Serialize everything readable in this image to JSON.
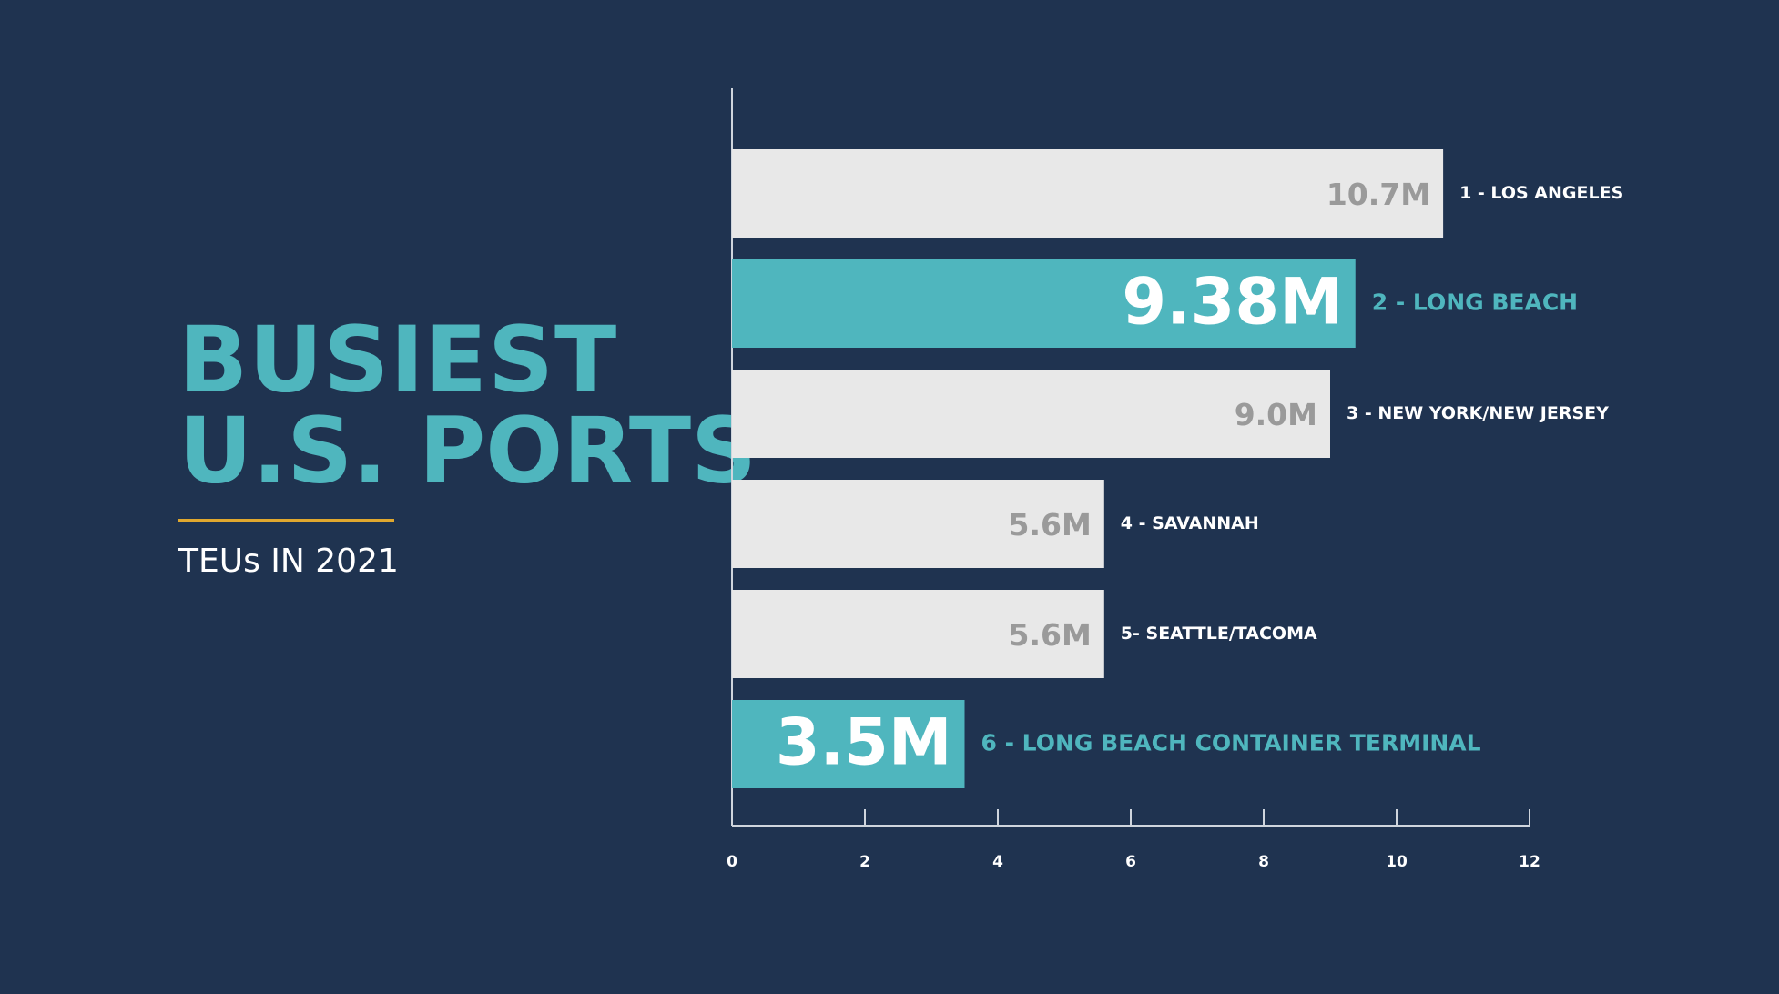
{
  "chart_data": {
    "type": "barh",
    "title": [
      "BUSIEST",
      "U.S. PORTS"
    ],
    "subtitle": "TEUs IN 2021",
    "categories": [
      "1 - LOS ANGELES",
      "2 - LONG BEACH",
      "3 - NEW YORK/NEW JERSEY",
      "4 - SAVANNAH",
      "5- SEATTLE/TACOMA",
      "6 - LONG BEACH CONTAINER TERMINAL"
    ],
    "values": [
      10.7,
      9.38,
      9.0,
      5.6,
      5.6,
      3.5
    ],
    "value_labels": [
      "10.7M",
      "9.38M",
      "9.0M",
      "5.6M",
      "5.6M",
      "3.5M"
    ],
    "colors": [
      "#e8e8e8",
      "#4fb6be",
      "#e8e8e8",
      "#e8e8e8",
      "#e8e8e8",
      "#4fb6be"
    ],
    "highlight_color": "#4fb6be",
    "xlim": [
      0,
      12
    ],
    "xticks": [
      0,
      2,
      4,
      6,
      8,
      10,
      12
    ]
  }
}
